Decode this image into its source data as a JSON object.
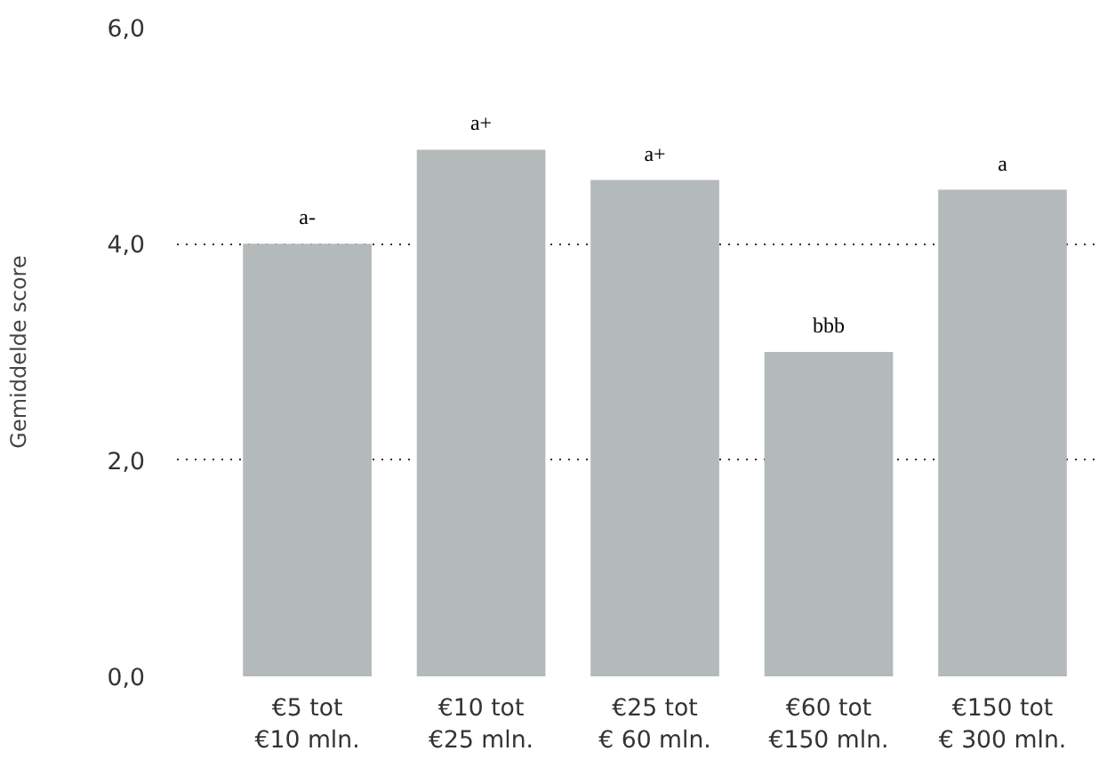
{
  "chart_data": {
    "type": "bar",
    "ylabel": "Gemiddelde score",
    "categories": [
      "€5 tot\n€10 mln.",
      "€10 tot\n€25 mln.",
      "€25 tot\n€ 60 mln.",
      "€60 tot\n€150 mln.",
      "€150 tot\n€ 300 mln."
    ],
    "values": [
      4.0,
      4.87,
      4.59,
      3.0,
      4.5
    ],
    "value_labels": [
      "a-",
      "a+",
      "a+",
      "bbb",
      "a"
    ],
    "color": "#b4b9ba",
    "ylim": [
      0,
      6
    ],
    "yticks": [
      {
        "value": 0,
        "label": "0,0"
      },
      {
        "value": 2,
        "label": "2,0"
      },
      {
        "value": 4,
        "label": "4,0"
      },
      {
        "value": 6,
        "label": "6,0"
      }
    ],
    "grid": "y"
  }
}
